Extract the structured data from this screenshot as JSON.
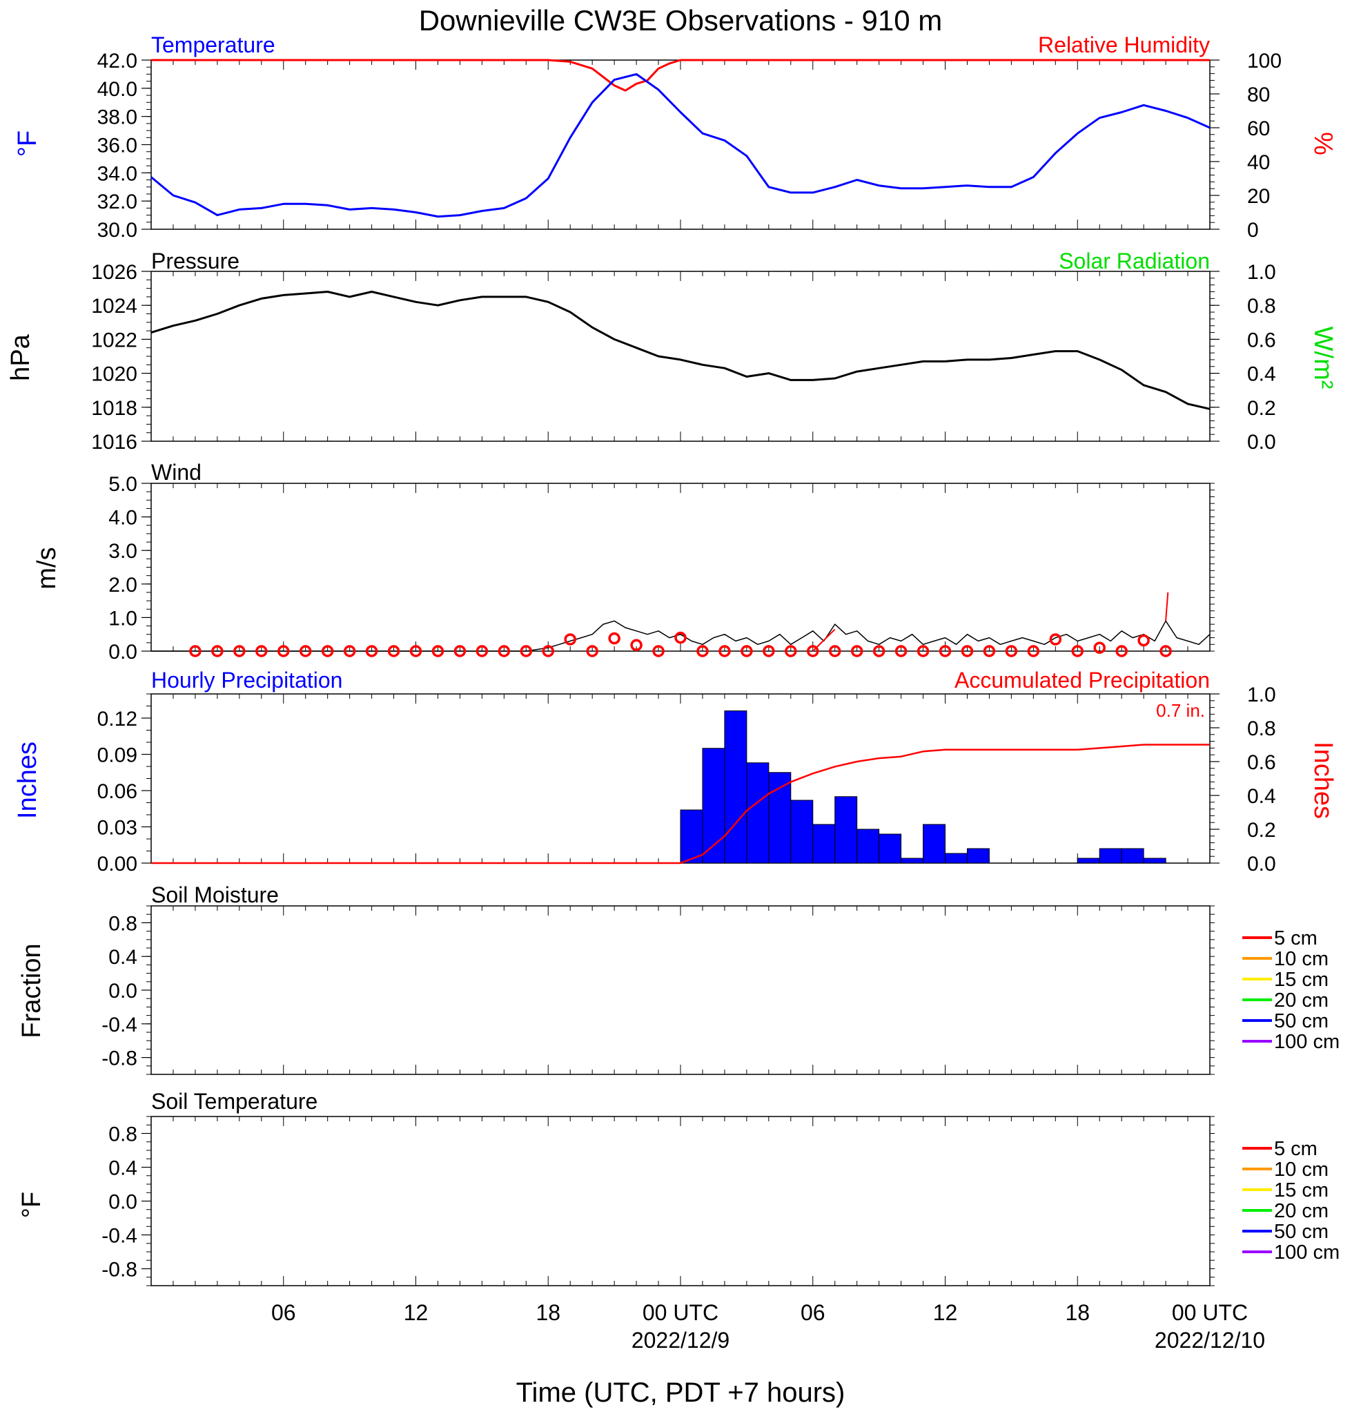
{
  "title": "Downieville CW3E Observations - 910 m",
  "x_axis": {
    "label": "Time (UTC, PDT +7 hours)",
    "ticks": [
      "06",
      "12",
      "18",
      "00 UTC",
      "06",
      "12",
      "18",
      "00 UTC"
    ],
    "dates": [
      "2022/12/9",
      "2022/12/10"
    ],
    "range_hours": [
      0,
      48
    ]
  },
  "colors": {
    "temperature": "#0000ff",
    "humidity": "#ff0000",
    "pressure": "#000000",
    "solar": "#00dd00",
    "wind": "#000000",
    "wind_markers": "#ff0000",
    "precip_bars": "#0000ff",
    "precip_accum": "#ff0000"
  },
  "panels": {
    "temperature": {
      "title_left": "Temperature",
      "title_right": "Relative Humidity",
      "ylabel_left": "°F",
      "ylabel_right": "%",
      "yticks_left": [
        "42.0",
        "40.0",
        "38.0",
        "36.0",
        "34.0",
        "32.0",
        "30.0"
      ],
      "yticks_right": [
        "100",
        "80",
        "60",
        "40",
        "20",
        "0"
      ]
    },
    "pressure": {
      "title_left": "Pressure",
      "title_right": "Solar Radiation",
      "ylabel_left": "hPa",
      "ylabel_right": "W/m²",
      "yticks_left": [
        "1026",
        "1024",
        "1022",
        "1020",
        "1018",
        "1016"
      ],
      "yticks_right": [
        "1.0",
        "0.8",
        "0.6",
        "0.4",
        "0.2",
        "0.0"
      ]
    },
    "wind": {
      "title_left": "Wind",
      "ylabel_left": "m/s",
      "yticks_left": [
        "5.0",
        "4.0",
        "3.0",
        "2.0",
        "1.0",
        "0.0"
      ]
    },
    "precip": {
      "title_left": "Hourly Precipitation",
      "title_right": "Accumulated Precipitation",
      "ylabel_left": "Inches",
      "ylabel_right": "Inches",
      "annotation": "0.7 in.",
      "yticks_left": [
        "0.12",
        "0.09",
        "0.06",
        "0.03",
        "0.00"
      ],
      "yticks_right": [
        "1.0",
        "0.8",
        "0.6",
        "0.4",
        "0.2",
        "0.0"
      ]
    },
    "soil_moisture": {
      "title_left": "Soil Moisture",
      "ylabel_left": "Fraction",
      "yticks_left": [
        "0.8",
        "0.4",
        "0.0",
        "-0.4",
        "-0.8"
      ],
      "legend": [
        {
          "label": "5 cm",
          "color": "#ff0000"
        },
        {
          "label": "10 cm",
          "color": "#ff9900"
        },
        {
          "label": "15 cm",
          "color": "#ffee00"
        },
        {
          "label": "20 cm",
          "color": "#00ee00"
        },
        {
          "label": "50 cm",
          "color": "#0000ff"
        },
        {
          "label": "100 cm",
          "color": "#9900ff"
        }
      ]
    },
    "soil_temperature": {
      "title_left": "Soil Temperature",
      "ylabel_left": "°F",
      "yticks_left": [
        "0.8",
        "0.4",
        "0.0",
        "-0.4",
        "-0.8"
      ],
      "legend": [
        {
          "label": "5 cm",
          "color": "#ff0000"
        },
        {
          "label": "10 cm",
          "color": "#ff9900"
        },
        {
          "label": "15 cm",
          "color": "#ffee00"
        },
        {
          "label": "20 cm",
          "color": "#00ee00"
        },
        {
          "label": "50 cm",
          "color": "#0000ff"
        },
        {
          "label": "100 cm",
          "color": "#9900ff"
        }
      ]
    }
  },
  "chart_data": [
    {
      "type": "line",
      "title": "Temperature",
      "xlabel": "Time (UTC, PDT +7 hours)",
      "ylabel": "°F",
      "ylim": [
        30,
        42
      ],
      "x_hours": [
        0,
        1,
        2,
        3,
        4,
        5,
        6,
        7,
        8,
        9,
        10,
        11,
        12,
        13,
        14,
        15,
        16,
        17,
        18,
        19,
        20,
        21,
        22,
        23,
        24,
        25,
        26,
        27,
        28,
        29,
        30,
        31,
        32,
        33,
        34,
        35,
        36,
        37,
        38,
        39,
        40,
        41,
        42,
        43,
        44,
        45,
        46,
        47,
        48
      ],
      "series": [
        {
          "name": "Temperature",
          "values": [
            33.7,
            32.4,
            31.9,
            31.0,
            31.4,
            31.5,
            31.8,
            31.8,
            31.7,
            31.4,
            31.5,
            31.4,
            31.2,
            30.9,
            31.0,
            31.3,
            31.5,
            32.2,
            33.6,
            36.5,
            39.0,
            40.6,
            41.0,
            39.9,
            38.3,
            36.8,
            36.3,
            35.2,
            33.0,
            32.6,
            32.6,
            33.0,
            33.5,
            33.1,
            32.9,
            32.9,
            33.0,
            33.1,
            33.0,
            33.0,
            33.7,
            35.4,
            36.8,
            37.9,
            38.3,
            38.8,
            38.4,
            37.9,
            37.2
          ]
        }
      ]
    },
    {
      "type": "line",
      "title": "Relative Humidity",
      "ylabel": "%",
      "ylim": [
        0,
        100
      ],
      "x_hours": [
        0,
        18,
        19,
        19.5,
        20,
        20.5,
        21,
        21.5,
        22,
        22.5,
        23,
        23.5,
        24,
        48
      ],
      "series": [
        {
          "name": "Relative Humidity",
          "values": [
            100,
            100,
            99,
            97,
            95,
            90,
            85,
            82,
            86,
            88,
            95,
            98,
            100,
            100
          ]
        }
      ]
    },
    {
      "type": "line",
      "title": "Pressure",
      "ylabel": "hPa",
      "ylim": [
        1016,
        1026
      ],
      "x_hours": [
        0,
        1,
        2,
        3,
        4,
        5,
        6,
        7,
        8,
        9,
        10,
        11,
        12,
        13,
        14,
        15,
        16,
        17,
        18,
        19,
        20,
        21,
        22,
        23,
        24,
        25,
        26,
        27,
        28,
        29,
        30,
        31,
        32,
        33,
        34,
        35,
        36,
        37,
        38,
        39,
        40,
        41,
        42,
        43,
        44,
        45,
        46,
        47,
        48
      ],
      "series": [
        {
          "name": "Pressure",
          "values": [
            1022.4,
            1022.8,
            1023.1,
            1023.5,
            1024.0,
            1024.4,
            1024.6,
            1024.7,
            1024.8,
            1024.5,
            1024.8,
            1024.5,
            1024.2,
            1024.0,
            1024.3,
            1024.5,
            1024.5,
            1024.5,
            1024.2,
            1023.6,
            1022.7,
            1022.0,
            1021.5,
            1021.0,
            1020.8,
            1020.5,
            1020.3,
            1019.8,
            1020.0,
            1019.6,
            1019.6,
            1019.7,
            1020.1,
            1020.3,
            1020.5,
            1020.7,
            1020.7,
            1020.8,
            1020.8,
            1020.9,
            1021.1,
            1021.3,
            1021.3,
            1020.8,
            1020.2,
            1019.3,
            1018.9,
            1018.2,
            1017.9
          ]
        }
      ]
    },
    {
      "type": "line",
      "title": "Wind",
      "ylabel": "m/s",
      "ylim": [
        0,
        5
      ],
      "x_hours": [
        0,
        17,
        18,
        18.5,
        19,
        19.5,
        20,
        20.5,
        21,
        21.5,
        22,
        22.5,
        23,
        23.5,
        24,
        24.5,
        25,
        25.5,
        26,
        26.5,
        27,
        27.5,
        28,
        28.5,
        29,
        29.5,
        30,
        30.5,
        31,
        31.5,
        32,
        32.5,
        33,
        33.5,
        34,
        34.5,
        35,
        35.5,
        36,
        36.5,
        37,
        37.5,
        38,
        38.5,
        39,
        39.5,
        40,
        40.5,
        41,
        41.5,
        42,
        42.5,
        43,
        43.5,
        44,
        44.5,
        45,
        45.5,
        46,
        46.5,
        47,
        47.5,
        48
      ],
      "series": [
        {
          "name": "Wind speed",
          "values": [
            0,
            0,
            0.1,
            0.2,
            0.3,
            0.4,
            0.5,
            0.8,
            0.9,
            0.7,
            0.6,
            0.5,
            0.6,
            0.4,
            0.5,
            0.3,
            0.2,
            0.4,
            0.5,
            0.3,
            0.4,
            0.2,
            0.3,
            0.5,
            0.2,
            0.4,
            0.6,
            0.3,
            0.8,
            0.5,
            0.6,
            0.3,
            0.2,
            0.4,
            0.3,
            0.5,
            0.2,
            0.3,
            0.4,
            0.2,
            0.5,
            0.3,
            0.4,
            0.2,
            0.3,
            0.4,
            0.3,
            0.2,
            0.4,
            0.5,
            0.3,
            0.4,
            0.5,
            0.3,
            0.6,
            0.4,
            0.5,
            0.3,
            0.9,
            0.4,
            0.3,
            0.2,
            0.5
          ]
        },
        {
          "name": "Hourly wind markers",
          "x_hours": [
            2,
            3,
            4,
            5,
            6,
            7,
            8,
            9,
            10,
            11,
            12,
            13,
            14,
            15,
            16,
            17,
            18,
            19,
            20,
            21,
            22,
            23,
            24,
            25,
            26,
            27,
            28,
            29,
            30,
            31,
            32,
            33,
            34,
            35,
            36,
            37,
            38,
            39,
            40,
            41,
            42,
            43,
            44,
            45,
            46
          ],
          "values": [
            0,
            0,
            0,
            0,
            0,
            0,
            0,
            0,
            0,
            0,
            0,
            0,
            0,
            0,
            0,
            0,
            0,
            0.35,
            0,
            0.38,
            0.18,
            0,
            0.4,
            0,
            0,
            0,
            0,
            0,
            0,
            0,
            0,
            0,
            0,
            0,
            0,
            0,
            0,
            0,
            0,
            0.35,
            0,
            0.1,
            0,
            0.32,
            0
          ]
        },
        {
          "name": "Gust segments",
          "segments": [
            {
              "x": [
                30,
                31
              ],
              "y": [
                0,
                0.65
              ]
            },
            {
              "x": [
                46,
                46.1
              ],
              "y": [
                0.9,
                1.75
              ]
            }
          ]
        }
      ]
    },
    {
      "type": "bar",
      "title": "Hourly Precipitation",
      "ylabel": "Inches",
      "ylim": [
        0,
        0.14
      ],
      "x_hours_start": [
        24,
        25,
        26,
        27,
        28,
        29,
        30,
        31,
        32,
        33,
        34,
        35,
        36,
        37,
        38,
        39,
        40,
        41,
        42,
        43,
        44,
        45
      ],
      "values": [
        0.044,
        0.095,
        0.126,
        0.083,
        0.075,
        0.052,
        0.032,
        0.055,
        0.028,
        0.024,
        0.004,
        0.032,
        0.008,
        0.012,
        0,
        0,
        0,
        0,
        0.004,
        0.012,
        0.012,
        0.004
      ]
    },
    {
      "type": "line",
      "title": "Accumulated Precipitation",
      "ylabel": "Inches",
      "ylim": [
        0,
        1.0
      ],
      "x_hours": [
        0,
        24,
        25,
        26,
        27,
        28,
        29,
        30,
        31,
        32,
        33,
        34,
        35,
        36,
        37,
        38,
        39,
        40,
        41,
        42,
        43,
        44,
        45,
        46,
        47,
        48
      ],
      "series": [
        {
          "name": "Accumulated Precipitation",
          "values": [
            0,
            0,
            0.05,
            0.16,
            0.31,
            0.41,
            0.48,
            0.53,
            0.57,
            0.6,
            0.62,
            0.63,
            0.66,
            0.67,
            0.67,
            0.67,
            0.67,
            0.67,
            0.67,
            0.67,
            0.68,
            0.69,
            0.7,
            0.7,
            0.7,
            0.7
          ]
        }
      ]
    },
    {
      "type": "line",
      "title": "Soil Moisture",
      "ylabel": "Fraction",
      "ylim": [
        -1,
        1
      ],
      "series": []
    },
    {
      "type": "line",
      "title": "Soil Temperature",
      "ylabel": "°F",
      "ylim": [
        -1,
        1
      ],
      "series": []
    }
  ]
}
